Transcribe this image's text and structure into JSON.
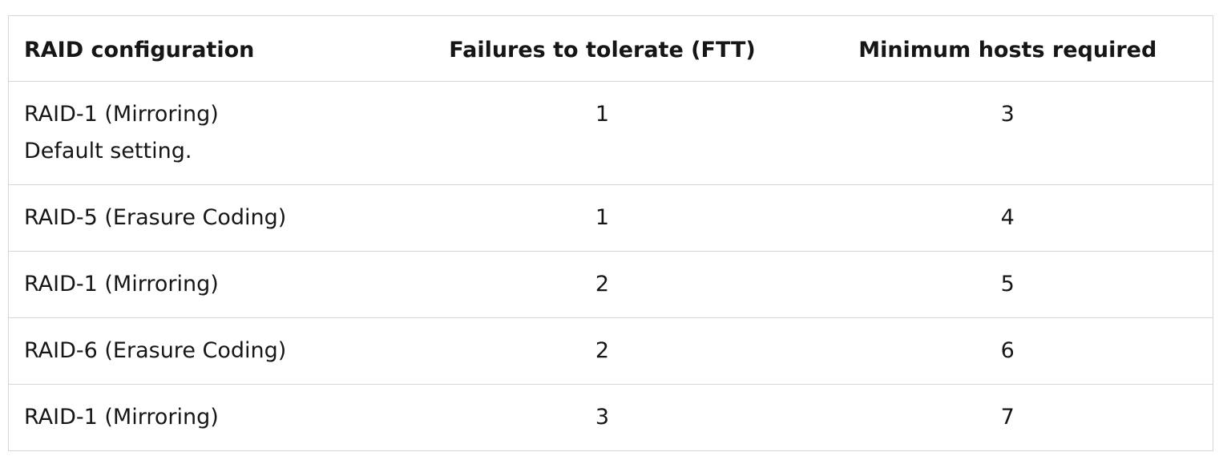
{
  "table": {
    "headers": [
      "RAID configuration",
      "Failures to tolerate (FTT)",
      "Minimum hosts required"
    ],
    "rows": [
      {
        "config": "RAID-1 (Mirroring)",
        "note": "Default setting.",
        "ftt": "1",
        "hosts": "3"
      },
      {
        "config": "RAID-5 (Erasure Coding)",
        "note": "",
        "ftt": "1",
        "hosts": "4"
      },
      {
        "config": "RAID-1 (Mirroring)",
        "note": "",
        "ftt": "2",
        "hosts": "5"
      },
      {
        "config": "RAID-6 (Erasure Coding)",
        "note": "",
        "ftt": "2",
        "hosts": "6"
      },
      {
        "config": "RAID-1 (Mirroring)",
        "note": "",
        "ftt": "3",
        "hosts": "7"
      }
    ]
  }
}
